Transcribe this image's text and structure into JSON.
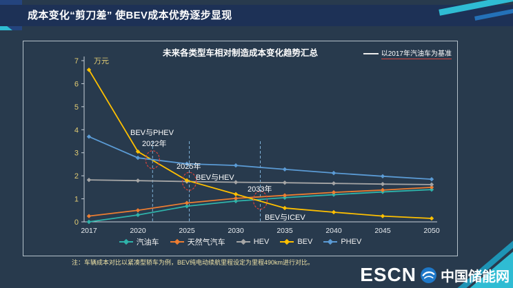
{
  "slide": {
    "title": "成本变化“剪刀差” 使BEV成本优势逐步显现",
    "footnote": "注：车辆成本对比以紧凑型轿车为例，BEV纯电动续航里程设定为里程490km进行对比。",
    "brand": {
      "name": "ESCN",
      "cn": "中国储能网"
    }
  },
  "chart_data": {
    "type": "line",
    "title": "未来各类型车相对制造成本变化趋势汇总",
    "baseline_note": "以2017年汽油车为基准",
    "unit_label": "万元",
    "categories": [
      "2017",
      "2020",
      "2025",
      "2030",
      "2035",
      "2040",
      "2045",
      "2050"
    ],
    "ylim": [
      0,
      7
    ],
    "yticks": [
      0,
      1,
      2,
      3,
      4,
      5,
      6,
      7
    ],
    "grid": false,
    "legend_position": "bottom",
    "series": [
      {
        "name": "汽油车",
        "color": "#2fb3aa",
        "values": [
          0,
          0.3,
          0.68,
          0.9,
          1.05,
          1.18,
          1.3,
          1.4
        ]
      },
      {
        "name": "天然气汽车",
        "color": "#ed7d31",
        "values": [
          0.25,
          0.5,
          0.82,
          1.02,
          1.15,
          1.28,
          1.38,
          1.5
        ]
      },
      {
        "name": "HEV",
        "color": "#a6a6a6",
        "values": [
          1.82,
          1.79,
          1.75,
          1.72,
          1.7,
          1.67,
          1.64,
          1.62
        ]
      },
      {
        "name": "BEV",
        "color": "#ffc000",
        "values": [
          6.6,
          3.05,
          1.8,
          1.2,
          0.6,
          0.42,
          0.25,
          0.15
        ]
      },
      {
        "name": "PHEV",
        "color": "#5b9bd5",
        "values": [
          3.7,
          2.78,
          2.52,
          2.45,
          2.28,
          2.12,
          1.98,
          1.85
        ]
      }
    ],
    "annotations": [
      {
        "label": "BEV与PHEV",
        "year_label": "2022年"
      },
      {
        "label": "BEV与HEV",
        "year_label": "2025年"
      },
      {
        "label": "BEV与ICEV",
        "year_label": "2033年"
      }
    ],
    "crossings": [
      {
        "x_index": 1.3,
        "value": 2.7
      },
      {
        "x_index": 2.05,
        "value": 1.76
      },
      {
        "x_index": 3.5,
        "value": 0.94
      }
    ],
    "colors": {
      "axis": "#c7d0d9",
      "ytick_label": "#e2cc74",
      "xtick_label": "#e9edf1",
      "dashed_guide": "#7fb2d9",
      "crossing_circle": "#d9443c"
    }
  }
}
